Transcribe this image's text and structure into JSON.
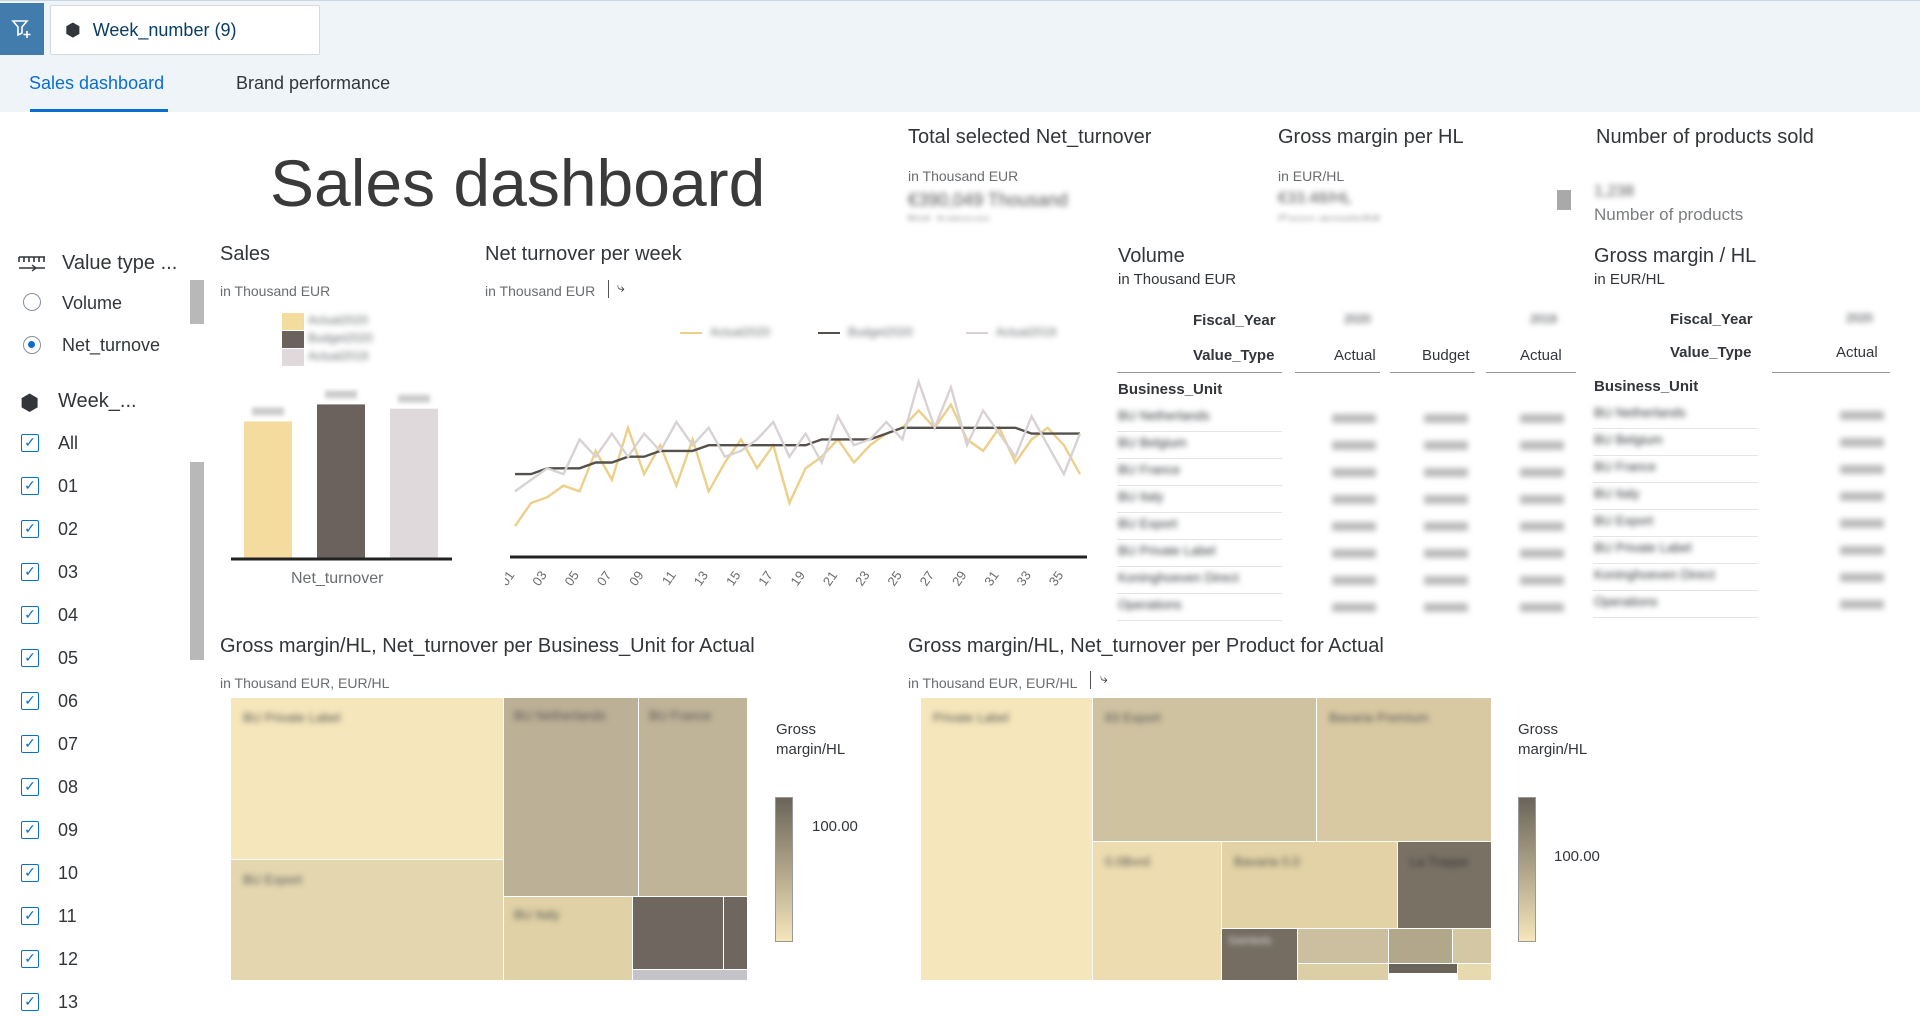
{
  "filter": {
    "chip_label": "Week_number (9)"
  },
  "tabs": [
    {
      "label": "Sales dashboard"
    },
    {
      "label": "Brand performance"
    }
  ],
  "page_title": "Sales dashboard",
  "kpis": [
    {
      "title": "Total selected Net_turnover",
      "unit": "in Thousand EUR",
      "value": "€390,049 Thousand",
      "caption": "Net_turnover"
    },
    {
      "title": "Gross margin per HL",
      "unit": "in EUR/HL",
      "value": "€33.48/HL",
      "caption": "Gross margin/HL"
    },
    {
      "title": "Number of products sold",
      "unit": "",
      "value": "1,238",
      "caption": "Number of products"
    }
  ],
  "sidebar": {
    "value_type": {
      "title": "Value type ...",
      "options": [
        "Volume",
        "Net_turnove"
      ],
      "selected": "Net_turnove"
    },
    "week": {
      "title": "Week_...",
      "items": [
        "All",
        "01",
        "02",
        "03",
        "04",
        "05",
        "06",
        "07",
        "08",
        "09",
        "10",
        "11",
        "12",
        "13"
      ]
    }
  },
  "sales_card": {
    "title": "Sales",
    "unit": "in Thousand EUR",
    "legend": [
      "Actual2020",
      "Budget2020",
      "Actual2019"
    ],
    "xlabel": "Net_turnover"
  },
  "netturnover_card": {
    "title": "Net turnover per week",
    "unit": "in Thousand EUR",
    "legend": [
      "Actual2020",
      "Budget2020",
      "Actual2019"
    ]
  },
  "volume_table": {
    "title": "Volume",
    "unit": "in Thousand EUR",
    "fiscal_year_label": "Fiscal_Year",
    "value_type_label": "Value_Type",
    "row_header": "Business_Unit",
    "year_values": [
      "2020",
      "2019"
    ],
    "columns": [
      "Actual",
      "Budget",
      "Actual"
    ],
    "rows": [
      "BU Netherlands",
      "BU Belgium",
      "BU France",
      "BU Italy",
      "BU Export",
      "BU Private Label",
      "Koninghoeven Direct",
      "Operations"
    ]
  },
  "gm_table": {
    "title": "Gross margin / HL",
    "unit": "in EUR/HL",
    "fiscal_year_label": "Fiscal_Year",
    "value_type_label": "Value_Type",
    "row_header": "Business_Unit",
    "year_values": [
      "2020"
    ],
    "columns": [
      "Actual"
    ],
    "rows": [
      "BU Netherlands",
      "BU Belgium",
      "BU France",
      "BU Italy",
      "BU Export",
      "BU Private Label",
      "Koninghoeven Direct",
      "Operations"
    ]
  },
  "treemap_bu": {
    "title": "Gross margin/HL, Net_turnover per Business_Unit for Actual",
    "unit": "in Thousand EUR, EUR/HL",
    "legend_title": "Gross margin/HL",
    "legend_value": "100.00",
    "cells": [
      "BU Private Label",
      "BU Export",
      "BU Netherlands",
      "BU France",
      "BU Italy"
    ]
  },
  "treemap_product": {
    "title": "Gross margin/HL, Net_turnover per Product for Actual",
    "unit": "in Thousand EUR, EUR/HL",
    "legend_title": "Gross margin/HL",
    "legend_value": "100.00",
    "cells": [
      "Private Label",
      "83 Export",
      "Bavaria Premium",
      "0.0Bvrd",
      "Bavaria 0.0",
      "La Trappe",
      "Swinkels"
    ]
  },
  "chart_data": [
    {
      "type": "bar",
      "title": "Sales",
      "categories": [
        "Net_turnover"
      ],
      "series": [
        {
          "name": "Actual2020",
          "values": [
            128
          ]
        },
        {
          "name": "Budget2020",
          "values": [
            144
          ]
        },
        {
          "name": "Actual2019",
          "values": [
            140
          ]
        }
      ],
      "colors": [
        "#f3dc9e",
        "#6b625d",
        "#e0d9dc"
      ]
    },
    {
      "type": "line",
      "title": "Net turnover per week",
      "x": [
        "01",
        "02",
        "03",
        "04",
        "05",
        "06",
        "07",
        "08",
        "09",
        "10",
        "11",
        "12",
        "13",
        "14",
        "15",
        "16",
        "17",
        "18",
        "19",
        "20",
        "21",
        "22",
        "23",
        "24",
        "25",
        "26",
        "27",
        "28",
        "29",
        "30",
        "31",
        "32",
        "33",
        "34",
        "35",
        "36"
      ],
      "tick_labels": [
        "01",
        "03",
        "05",
        "07",
        "09",
        "11",
        "13",
        "15",
        "17",
        "19",
        "21",
        "23",
        "25",
        "27",
        "29",
        "31",
        "33",
        "35"
      ],
      "series": [
        {
          "name": "Actual2020",
          "color": "#ecd08a",
          "values": [
            5,
            9,
            10,
            12,
            11,
            18,
            13,
            22,
            14,
            19,
            12,
            20,
            11,
            16,
            20,
            15,
            19,
            9,
            15,
            17,
            20,
            16,
            19,
            21,
            22,
            25,
            22,
            26,
            20,
            18,
            22,
            16,
            20,
            22,
            19,
            14
          ]
        },
        {
          "name": "Budget2020",
          "color": "#56504c",
          "values": [
            14,
            14,
            15,
            15,
            15,
            16,
            16,
            17,
            17,
            18,
            18,
            18,
            19,
            19,
            19,
            19,
            19,
            19,
            19,
            20,
            20,
            20,
            20,
            21,
            22,
            22,
            22,
            22,
            22,
            22,
            22,
            22,
            21,
            21,
            21,
            21
          ]
        },
        {
          "name": "Actual2019",
          "color": "#d8d2d4",
          "values": [
            11,
            13,
            15,
            14,
            20,
            17,
            21,
            17,
            21,
            18,
            23,
            19,
            22,
            17,
            18,
            20,
            23,
            17,
            21,
            16,
            24,
            19,
            20,
            23,
            20,
            30,
            22,
            29,
            19,
            25,
            21,
            17,
            24,
            19,
            14,
            21
          ]
        }
      ]
    }
  ]
}
